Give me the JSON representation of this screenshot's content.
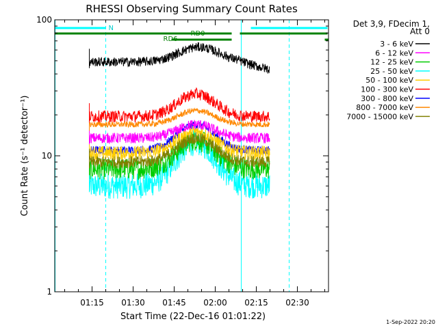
{
  "chart_data": {
    "type": "line",
    "title": "RHESSI Observing Summary Count Rates",
    "xlabel": "Start Time (22-Dec-16 01:01:22)",
    "ylabel": "Count Rate (s⁻¹ detector⁻¹)",
    "y_scale": "log",
    "ylim": [
      1,
      100
    ],
    "y_ticks": [
      1,
      10,
      100
    ],
    "y_tick_labels": [
      "1",
      "10",
      "100"
    ],
    "xlim_minutes": [
      61.37,
      161.37
    ],
    "x_ticks": [
      75,
      90,
      105,
      120,
      135,
      150
    ],
    "x_tick_labels": [
      "01:15",
      "01:30",
      "01:45",
      "02:00",
      "02:15",
      "02:30"
    ],
    "legend_header": [
      "Det 3,9, FDecim 1,",
      "Att 0"
    ],
    "legend_position": "right",
    "series": [
      {
        "name": "3 - 6 keV",
        "color": "#000000",
        "x": [
          75,
          80,
          90,
          100,
          105,
          110,
          114,
          118,
          122,
          126,
          130,
          134,
          137,
          139,
          140
        ],
        "values": [
          49,
          50,
          51,
          52,
          53,
          55,
          60,
          59,
          55,
          52,
          48,
          44,
          42,
          44,
          45
        ],
        "base": 49,
        "peak": 14,
        "noise": 0.08
      },
      {
        "name": "6 - 12 keV",
        "color": "#ff00ff",
        "x": [
          75,
          90,
          100,
          110,
          115,
          120,
          130,
          140
        ],
        "values": [
          14,
          13,
          13.5,
          16,
          17,
          16,
          14,
          13
        ],
        "base": 13.5,
        "peak": 3.5,
        "noise": 0.09
      },
      {
        "name": "12 - 25 keV",
        "color": "#00cc00",
        "x": [
          75,
          90,
          100,
          110,
          115,
          120,
          130,
          140
        ],
        "values": [
          9,
          7,
          8,
          12,
          13,
          12,
          9,
          8
        ],
        "base": 8,
        "peak": 5,
        "noise": 0.18
      },
      {
        "name": "25 - 50 keV",
        "color": "#00ffff",
        "x": [
          75,
          90,
          100,
          110,
          115,
          120,
          130,
          140
        ],
        "values": [
          6.5,
          5,
          6,
          11,
          12.5,
          11,
          7,
          6
        ],
        "base": 6,
        "peak": 6.5,
        "noise": 0.22
      },
      {
        "name": "50 - 100 keV",
        "color": "#ffcc00",
        "x": [
          75,
          90,
          100,
          110,
          115,
          120,
          130,
          140
        ],
        "values": [
          11,
          10,
          10.5,
          14,
          15,
          14,
          11,
          10.5
        ],
        "base": 10.5,
        "peak": 4.5,
        "noise": 0.12
      },
      {
        "name": "100 - 300 keV",
        "color": "#ff0000",
        "x": [
          75,
          90,
          100,
          110,
          115,
          120,
          130,
          140
        ],
        "values": [
          20,
          19,
          20,
          26,
          29,
          26,
          21,
          20
        ],
        "base": 19.5,
        "peak": 9,
        "noise": 0.1
      },
      {
        "name": "300 - 800 keV",
        "color": "#0000ff",
        "x": [
          75,
          90,
          100,
          110,
          115,
          120,
          130,
          140
        ],
        "values": [
          11.5,
          10.5,
          11,
          15,
          17,
          15,
          12,
          11
        ],
        "base": 11,
        "peak": 6,
        "noise": 0.07
      },
      {
        "name": "800 - 7000 keV",
        "color": "#ff8800",
        "x": [
          75,
          90,
          100,
          110,
          115,
          120,
          130,
          140
        ],
        "values": [
          17,
          16.5,
          17,
          20,
          21.5,
          20,
          17.5,
          17
        ],
        "base": 17,
        "peak": 4.5,
        "noise": 0.05
      },
      {
        "name": "7000 - 15000 keV",
        "color": "#808000",
        "x": [
          75,
          90,
          100,
          110,
          115,
          120,
          130,
          140
        ],
        "values": [
          9,
          8.5,
          9,
          12,
          13.5,
          12,
          9.5,
          9
        ],
        "base": 9,
        "peak": 4.5,
        "noise": 0.1
      }
    ],
    "flag_bars": [
      {
        "label": "N",
        "color": "#00ffff",
        "segments": [
          [
            61.37,
            80
          ],
          [
            133,
            161
          ]
        ]
      },
      {
        "label": "RD0",
        "color": "#008000",
        "segments": [
          [
            61.37,
            126
          ],
          [
            129,
            161
          ]
        ]
      },
      {
        "label": "RD6",
        "color": "#008000",
        "segments": [
          [
            104,
            126
          ],
          [
            160,
            161.37
          ]
        ]
      }
    ],
    "vlines": [
      {
        "x": 61.5,
        "color": "#00ffff",
        "style": "solid"
      },
      {
        "x": 80,
        "color": "#00ffff",
        "style": "dashed"
      },
      {
        "x": 129.5,
        "color": "#00ffff",
        "style": "solid"
      },
      {
        "x": 147,
        "color": "#00ffff",
        "style": "dashed"
      }
    ],
    "data_range_minutes": [
      74,
      140
    ]
  },
  "timestamp": "1-Sep-2022 20:20"
}
